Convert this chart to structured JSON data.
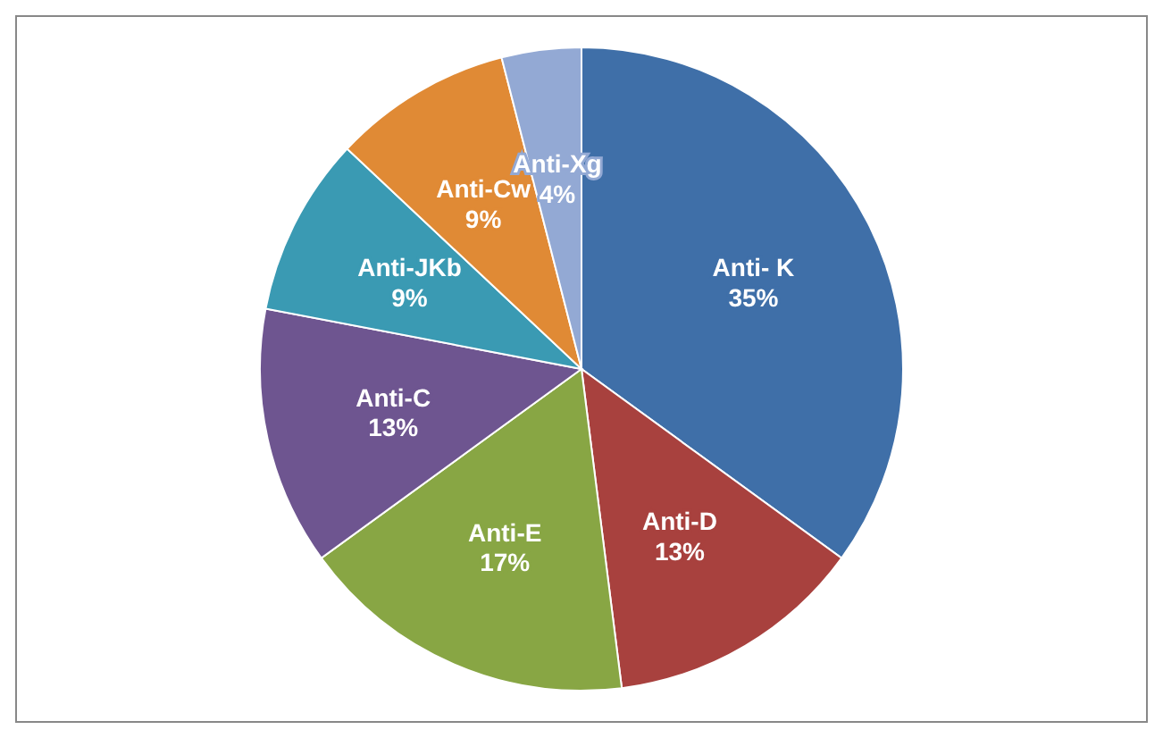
{
  "chart_data": {
    "type": "pie",
    "categories": [
      "Anti- K",
      "Anti-D",
      "Anti-E",
      "Anti-C",
      "Anti-JKb",
      "Anti-Cw",
      "Anti-Xg"
    ],
    "values": [
      35,
      13,
      17,
      13,
      9,
      9,
      4
    ],
    "value_labels": [
      "35%",
      "13%",
      "17%",
      "13%",
      "9%",
      "9%",
      "4%"
    ],
    "colors": [
      "#3f6fa8",
      "#a8413e",
      "#88a644",
      "#6e5590",
      "#3a9ab3",
      "#e08a35",
      "#93a9d4"
    ]
  }
}
